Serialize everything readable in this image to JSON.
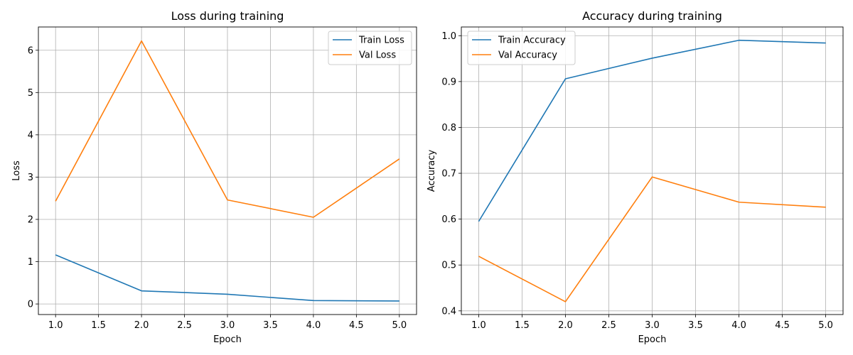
{
  "chart_data": [
    {
      "type": "line",
      "title": "Loss during training",
      "xlabel": "Epoch",
      "ylabel": "Loss",
      "x": [
        1.0,
        2.0,
        3.0,
        4.0,
        5.0
      ],
      "xlim": [
        0.8,
        5.2
      ],
      "ylim": [
        -0.25,
        6.55
      ],
      "xticks": [
        "1.0",
        "1.5",
        "2.0",
        "2.5",
        "3.0",
        "3.5",
        "4.0",
        "4.5",
        "5.0"
      ],
      "yticks": [
        "0",
        "1",
        "2",
        "3",
        "4",
        "5",
        "6"
      ],
      "grid": true,
      "legend_position": "top-right",
      "series": [
        {
          "name": "Train Loss",
          "color": "#1f77b4",
          "values": [
            1.16,
            0.31,
            0.23,
            0.08,
            0.07
          ]
        },
        {
          "name": "Val Loss",
          "color": "#ff7f0e",
          "values": [
            2.43,
            6.22,
            2.46,
            2.05,
            3.43
          ]
        }
      ]
    },
    {
      "type": "line",
      "title": "Accuracy during training",
      "xlabel": "Epoch",
      "ylabel": "Accuracy",
      "x": [
        1.0,
        2.0,
        3.0,
        4.0,
        5.0
      ],
      "xlim": [
        0.8,
        5.2
      ],
      "ylim": [
        0.392,
        1.019
      ],
      "xticks": [
        "1.0",
        "1.5",
        "2.0",
        "2.5",
        "3.0",
        "3.5",
        "4.0",
        "4.5",
        "5.0"
      ],
      "yticks": [
        "0.4",
        "0.5",
        "0.6",
        "0.7",
        "0.8",
        "0.9",
        "1.0"
      ],
      "grid": true,
      "legend_position": "top-left",
      "series": [
        {
          "name": "Train Accuracy",
          "color": "#1f77b4",
          "values": [
            0.595,
            0.906,
            0.951,
            0.99,
            0.984
          ]
        },
        {
          "name": "Val Accuracy",
          "color": "#ff7f0e",
          "values": [
            0.519,
            0.42,
            0.692,
            0.637,
            0.626
          ]
        }
      ]
    }
  ]
}
